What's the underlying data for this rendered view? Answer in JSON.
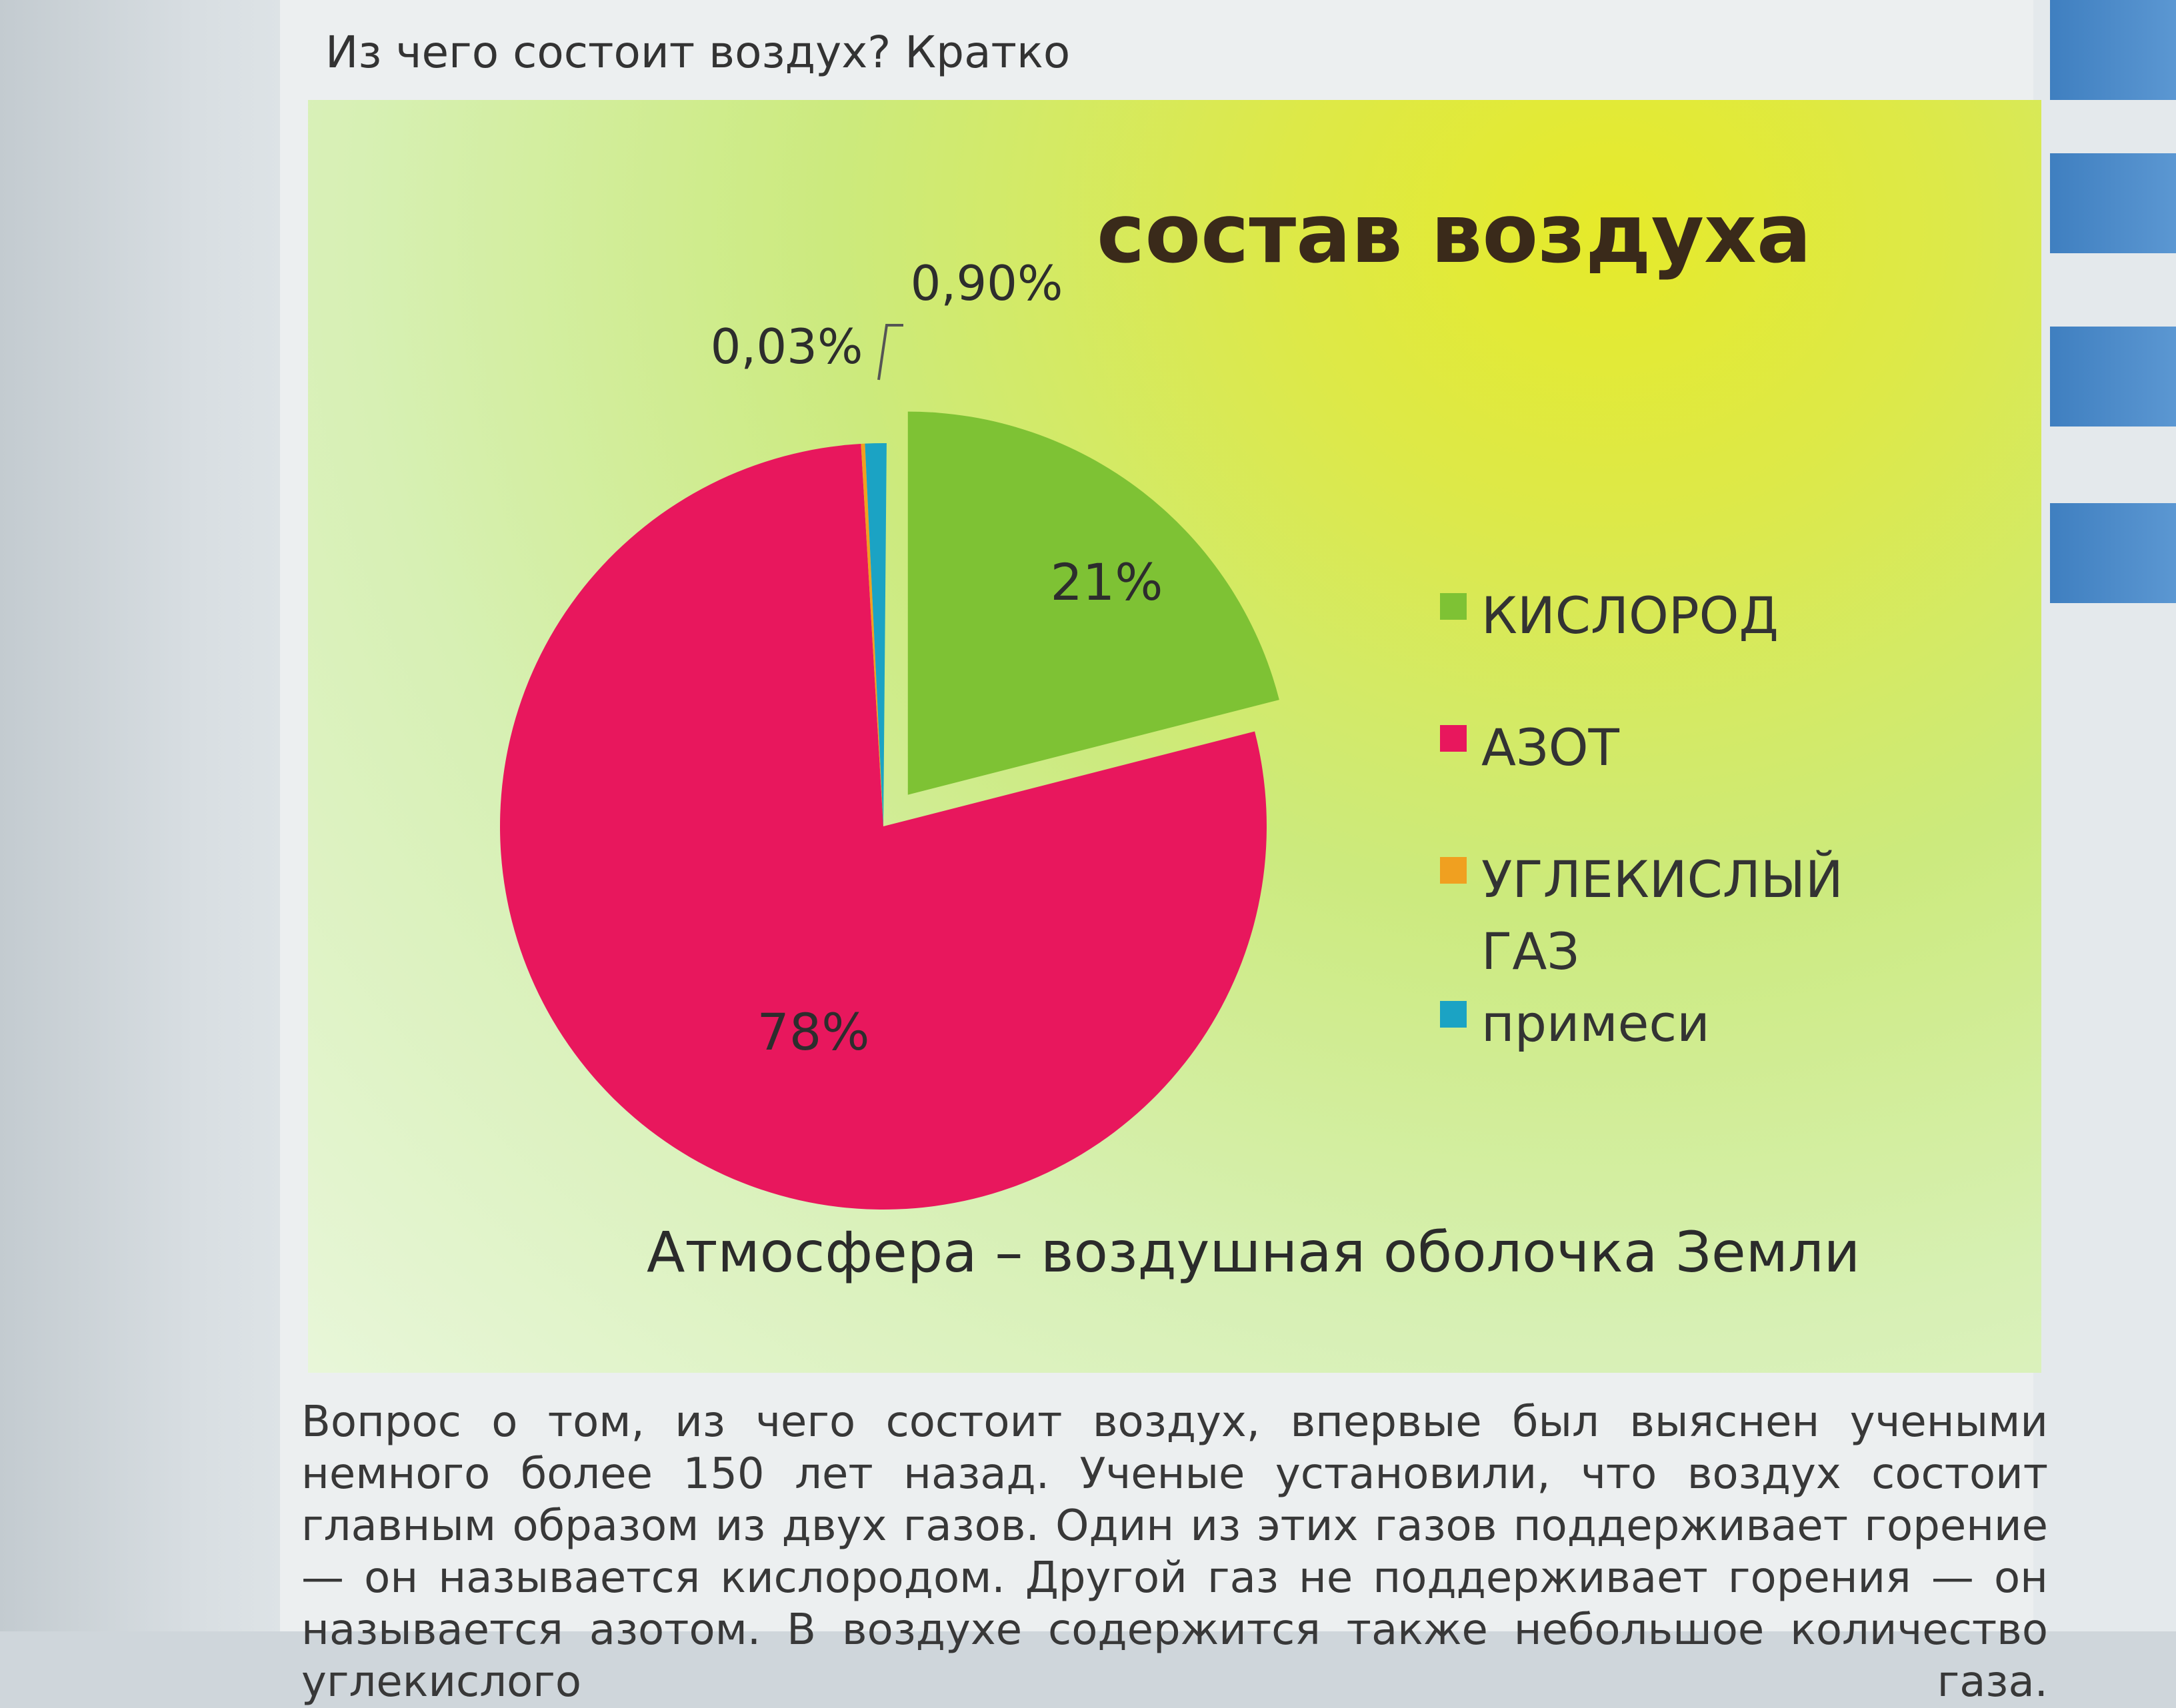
{
  "page": {
    "question": "Из чего состоит воздух? Кратко",
    "body_text": "Вопрос о том, из чего состоит воздух, впервые был выяснен учеными немного более 150 лет назад. Ученые установили, что воздух состоит главным образом из двух газов. Один из этих газов поддерживает горение — он называется кислородом. Другой газ не поддерживает горения — он называется азотом. В воздухе содержится также небольшое количество углекислого газа."
  },
  "slide": {
    "caption": "Атмосфера – воздушная оболочка Земли"
  },
  "chart_data": {
    "type": "pie",
    "title": "состав воздуха",
    "legend_position": "right",
    "slices": [
      {
        "name": "КИСЛОРОД",
        "value": 21,
        "label": "21%",
        "color": "#7ec234",
        "exploded": true
      },
      {
        "name": "АЗОТ",
        "value": 78,
        "label": "78%",
        "color": "#e8175d",
        "exploded": false
      },
      {
        "name": "УГЛЕКИСЛЫЙ ГАЗ",
        "value": 0.03,
        "label": "0,03%",
        "color": "#f0a020",
        "exploded": false
      },
      {
        "name": "примеси",
        "value": 0.9,
        "label": "0,90%",
        "color": "#1ba3c4",
        "exploded": false
      }
    ]
  }
}
